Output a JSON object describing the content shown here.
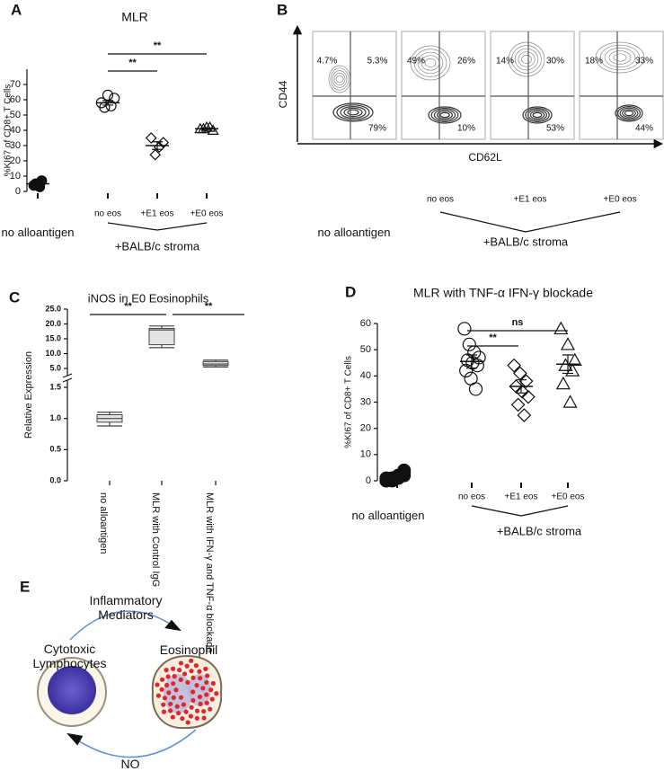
{
  "panel_labels": [
    "A",
    "B",
    "C",
    "D",
    "E"
  ],
  "chart_data": [
    {
      "type": "dot",
      "title": "MLR",
      "y_label": "%KI67 of CD8+ T Cells",
      "categories": [
        null,
        "no eos",
        "+E1 eos",
        "+E0 eos"
      ],
      "group_labels": [
        "no alloantigen",
        "+BALB/c stroma"
      ],
      "ylim": [
        0,
        80
      ],
      "yticks": [
        0,
        10,
        20,
        30,
        40,
        50,
        60,
        70
      ],
      "markers": [
        "filled-circle",
        "circle",
        "diamond",
        "triangle"
      ],
      "color": "#111111",
      "points": [
        [
          4,
          3,
          5,
          7,
          4
        ],
        [
          58,
          56,
          55,
          61,
          63
        ],
        [
          35,
          32,
          29,
          24
        ],
        [
          41,
          42,
          41,
          40,
          42
        ]
      ],
      "means": [
        5,
        58,
        30,
        41
      ],
      "sem": [
        1,
        1.5,
        2.5,
        0.5
      ],
      "significance": [
        "**",
        "**"
      ]
    },
    {
      "type": "box",
      "title": "iNOS in E0 Eosinophils",
      "y_label": "Relative Expression",
      "categories": [
        "no alloantigen",
        "MLR with Control IgG",
        "MLR with IFN-γ and TNF-α blockade"
      ],
      "axis_segments": [
        {
          "ylim": [
            0,
            1.5
          ],
          "yticks": [
            {
              "value": 0,
              "label": "0.0"
            },
            {
              "value": 0.5,
              "label": "0.5"
            },
            {
              "value": 1,
              "label": "1.0"
            },
            {
              "value": 1.5,
              "label": "1.5"
            }
          ]
        },
        {
          "ylim": [
            5,
            25
          ],
          "yticks": [
            {
              "value": 5,
              "label": "5.0"
            },
            {
              "value": 10,
              "label": "10.0"
            },
            {
              "value": 15,
              "label": "15.0"
            },
            {
              "value": 20,
              "label": "20.0"
            },
            {
              "value": 25,
              "label": "25.0"
            }
          ]
        }
      ],
      "boxes": [
        {
          "min": 0.88,
          "q1": 0.94,
          "median": 1.0,
          "q3": 1.06,
          "max": 1.1
        },
        {
          "min": 12,
          "q1": 13,
          "median": 18,
          "q3": 18.5,
          "max": 19.3
        },
        {
          "min": 5.5,
          "q1": 6,
          "median": 6.5,
          "q3": 7.3,
          "max": 7.8
        }
      ],
      "color": "#e4e4e4",
      "significance": [
        "**",
        "**"
      ]
    },
    {
      "type": "dot",
      "title": "MLR with TNF-α IFN-γ blockade",
      "y_label": "%KI67 of CD8+ T Cells",
      "categories": [
        null,
        "no eos",
        "+E1 eos",
        "+E0 eos"
      ],
      "group_labels": [
        "no alloantigen",
        "+BALB/c stroma"
      ],
      "ylim": [
        0,
        60
      ],
      "yticks": [
        0,
        10,
        20,
        30,
        40,
        50,
        60
      ],
      "markers": [
        "filled-circle",
        "circle",
        "diamond",
        "triangle"
      ],
      "color": "#111111",
      "points": [
        [
          0,
          1,
          1,
          2,
          0,
          1,
          2,
          3,
          1,
          0,
          1,
          4
        ],
        [
          58,
          52,
          49,
          47,
          46,
          45,
          44,
          42,
          39,
          35
        ],
        [
          44,
          41,
          38,
          36,
          34,
          32,
          29,
          25
        ],
        [
          58,
          52,
          46,
          44,
          42,
          37,
          30
        ]
      ],
      "means": [
        1,
        45.5,
        36,
        44.5
      ],
      "sem": [
        0.4,
        2.5,
        2.5,
        3.5
      ],
      "significance": [
        "ns",
        "**"
      ]
    }
  ],
  "panel_b": {
    "y_label": "CD44",
    "x_label": "CD62L",
    "plots": [
      {
        "upper_left": "4.7%",
        "upper_right": "5.3%",
        "lower_right": "79%"
      },
      {
        "upper_left": "49%",
        "upper_right": "26%",
        "lower_right": "10%"
      },
      {
        "upper_left": "14%",
        "upper_right": "30%",
        "lower_right": "53%"
      },
      {
        "upper_left": "18%",
        "upper_right": "33%",
        "lower_right": "44%"
      }
    ],
    "conditions": [
      "no eos",
      "+E1 eos",
      "+E0 eos"
    ],
    "group_labels": [
      "no alloantigen",
      "+BALB/c stroma"
    ]
  },
  "panel_e": {
    "top_arrow": "Inflammatory Mediators",
    "left_cell": "Cytotoxic Lymphocytes",
    "right_cell": "Eosinophil",
    "bottom_arrow": "NO"
  }
}
